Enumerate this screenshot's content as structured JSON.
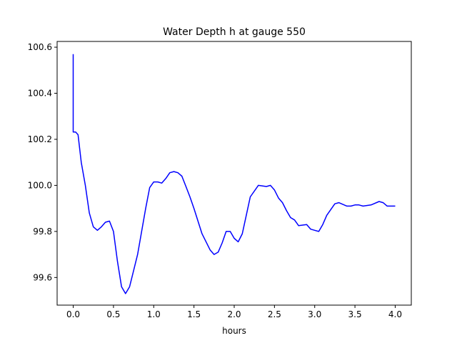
{
  "chart_data": {
    "type": "line",
    "title": "Water Depth h at gauge 550",
    "xlabel": "hours",
    "ylabel": "",
    "xlim": [
      -0.2,
      4.2
    ],
    "ylim": [
      99.48,
      100.625
    ],
    "xticks": [
      0.0,
      0.5,
      1.0,
      1.5,
      2.0,
      2.5,
      3.0,
      3.5,
      4.0
    ],
    "xtick_labels": [
      "0.0",
      "0.5",
      "1.0",
      "1.5",
      "2.0",
      "2.5",
      "3.0",
      "3.5",
      "4.0"
    ],
    "yticks": [
      99.6,
      99.8,
      100.0,
      100.2,
      100.4,
      100.6
    ],
    "ytick_labels": [
      "99.6",
      "99.8",
      "100.0",
      "100.2",
      "100.4",
      "100.6"
    ],
    "grid": false,
    "series": [
      {
        "color": "#0000ff",
        "x": [
          0.0,
          0.0,
          0.0,
          0.03,
          0.06,
          0.1,
          0.15,
          0.2,
          0.25,
          0.3,
          0.35,
          0.4,
          0.45,
          0.5,
          0.55,
          0.6,
          0.65,
          0.7,
          0.75,
          0.8,
          0.9,
          0.95,
          1.0,
          1.05,
          1.1,
          1.15,
          1.2,
          1.25,
          1.3,
          1.35,
          1.4,
          1.45,
          1.5,
          1.6,
          1.7,
          1.75,
          1.8,
          1.85,
          1.9,
          1.95,
          2.0,
          2.05,
          2.1,
          2.15,
          2.2,
          2.3,
          2.4,
          2.45,
          2.5,
          2.55,
          2.6,
          2.65,
          2.7,
          2.75,
          2.8,
          2.9,
          2.95,
          3.0,
          3.05,
          3.1,
          3.15,
          3.25,
          3.3,
          3.4,
          3.45,
          3.5,
          3.55,
          3.6,
          3.7,
          3.8,
          3.85,
          3.9,
          3.95,
          4.0
        ],
        "y": [
          100.57,
          100.4,
          100.232,
          100.232,
          100.22,
          100.1,
          100.0,
          99.88,
          99.82,
          99.805,
          99.82,
          99.84,
          99.845,
          99.8,
          99.67,
          99.56,
          99.53,
          99.56,
          99.63,
          99.7,
          99.9,
          99.99,
          100.015,
          100.015,
          100.01,
          100.03,
          100.055,
          100.06,
          100.055,
          100.04,
          99.995,
          99.95,
          99.9,
          99.79,
          99.72,
          99.7,
          99.71,
          99.75,
          99.8,
          99.8,
          99.77,
          99.755,
          99.79,
          99.87,
          99.95,
          100.0,
          99.995,
          100.0,
          99.98,
          99.945,
          99.925,
          99.89,
          99.86,
          99.85,
          99.825,
          99.83,
          99.81,
          99.805,
          99.8,
          99.83,
          99.87,
          99.92,
          99.925,
          99.91,
          99.91,
          99.915,
          99.915,
          99.91,
          99.915,
          99.93,
          99.925,
          99.91,
          99.91,
          99.91
        ]
      }
    ]
  }
}
